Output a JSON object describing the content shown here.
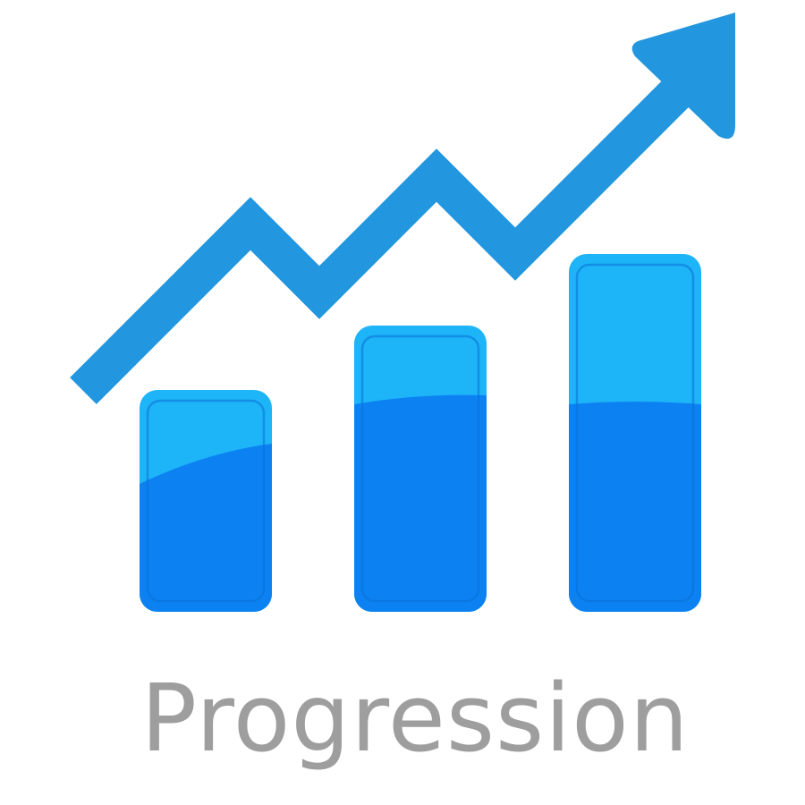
{
  "caption": "Progression",
  "icon": {
    "name": "growth-chart-icon",
    "bar_levels": [
      0.62,
      0.8,
      1.0
    ],
    "colors": {
      "arrow": "#2296de",
      "bar_top": "#1eb4f8",
      "bar_bottom": "#0c82f2",
      "bar_edge": "#0a6fd6",
      "caption": "#9e9e9e"
    }
  }
}
